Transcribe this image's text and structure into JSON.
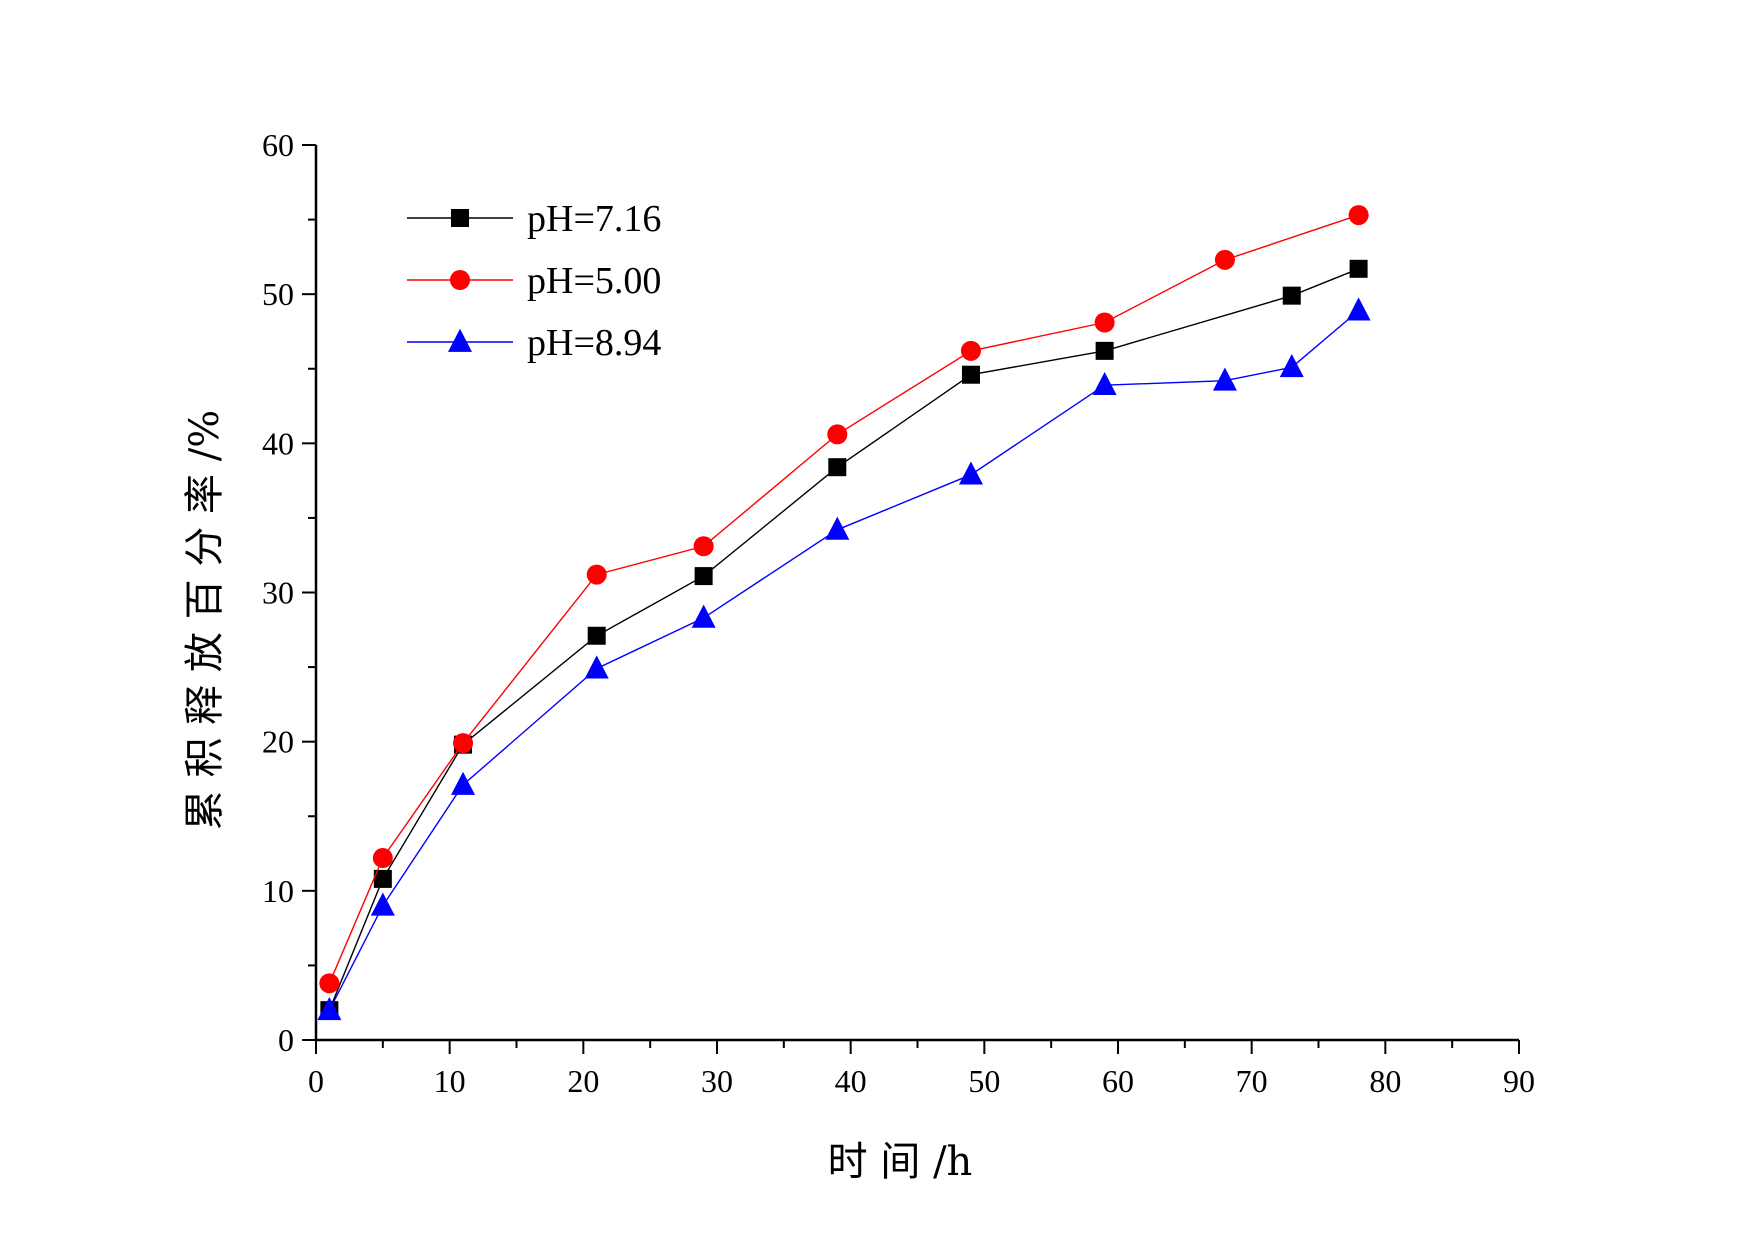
{
  "chart_data": {
    "type": "line",
    "xlabel": "时 间 /h",
    "ylabel": "累 积 释 放 百 分 率 /%",
    "xlim": [
      0,
      90
    ],
    "ylim": [
      0,
      60
    ],
    "x_major_ticks": [
      0,
      10,
      20,
      30,
      40,
      50,
      60,
      70,
      80,
      90
    ],
    "y_major_ticks": [
      0,
      10,
      20,
      30,
      40,
      50,
      60
    ],
    "grid": false,
    "legend_position": "top-left",
    "series": [
      {
        "name": "pH=7.16",
        "color": "#000000",
        "marker": "square",
        "points": [
          {
            "x": 1,
            "y": 2.0
          },
          {
            "x": 5,
            "y": 10.8
          },
          {
            "x": 11,
            "y": 19.8
          },
          {
            "x": 21,
            "y": 27.1
          },
          {
            "x": 29,
            "y": 31.1
          },
          {
            "x": 39,
            "y": 38.4
          },
          {
            "x": 49,
            "y": 44.6
          },
          {
            "x": 59,
            "y": 46.2
          },
          {
            "x": 73,
            "y": 49.9
          },
          {
            "x": 78,
            "y": 51.7
          }
        ]
      },
      {
        "name": "pH=5.00",
        "color": "#ff0000",
        "marker": "circle",
        "points": [
          {
            "x": 1,
            "y": 3.8
          },
          {
            "x": 5,
            "y": 12.2
          },
          {
            "x": 11,
            "y": 19.9
          },
          {
            "x": 21,
            "y": 31.2
          },
          {
            "x": 29,
            "y": 33.1
          },
          {
            "x": 39,
            "y": 40.6
          },
          {
            "x": 49,
            "y": 46.2
          },
          {
            "x": 59,
            "y": 48.1
          },
          {
            "x": 68,
            "y": 52.3
          },
          {
            "x": 78,
            "y": 55.3
          }
        ]
      },
      {
        "name": "pH=8.94",
        "color": "#0000ff",
        "marker": "triangle",
        "points": [
          {
            "x": 1,
            "y": 2.0
          },
          {
            "x": 5,
            "y": 9.0
          },
          {
            "x": 11,
            "y": 17.1
          },
          {
            "x": 21,
            "y": 24.9
          },
          {
            "x": 29,
            "y": 28.3
          },
          {
            "x": 39,
            "y": 34.2
          },
          {
            "x": 49,
            "y": 37.9
          },
          {
            "x": 59,
            "y": 43.9
          },
          {
            "x": 68,
            "y": 44.2
          },
          {
            "x": 73,
            "y": 45.1
          },
          {
            "x": 78,
            "y": 48.9
          }
        ]
      }
    ]
  }
}
